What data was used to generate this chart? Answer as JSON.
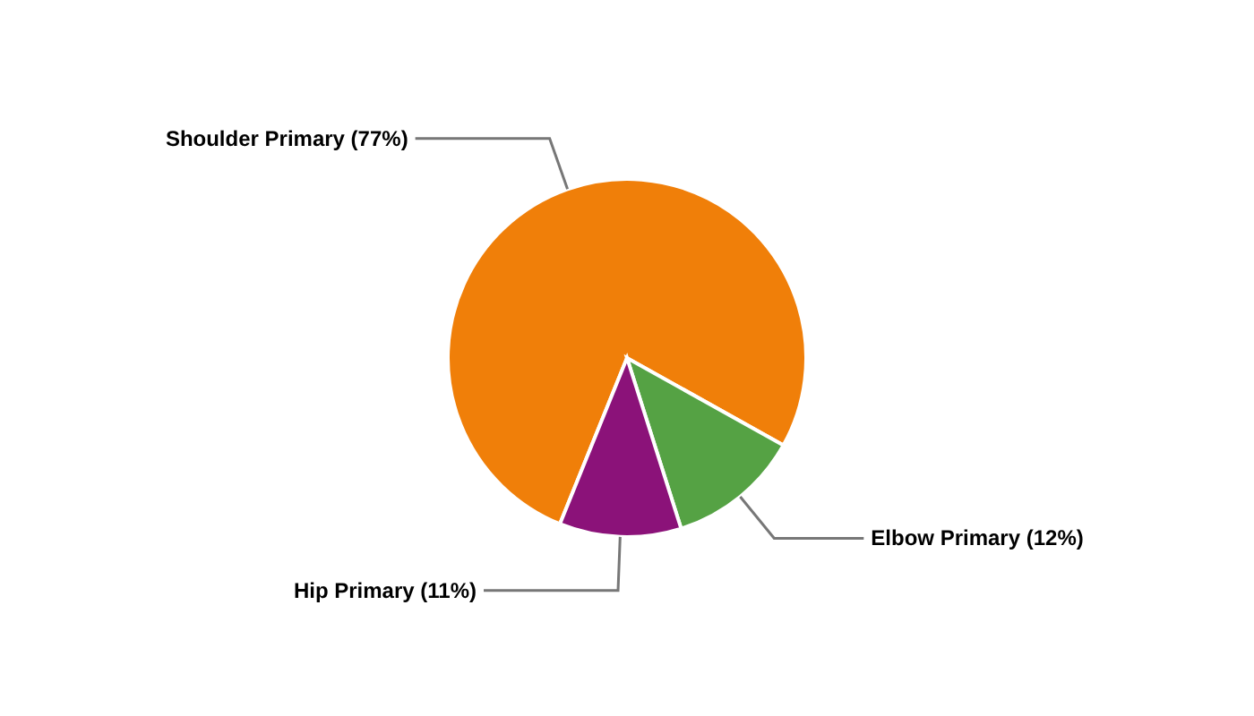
{
  "chart_data": {
    "type": "pie",
    "categories": [
      "Shoulder Primary",
      "Elbow Primary",
      "Hip Primary"
    ],
    "values": [
      77,
      12,
      11
    ],
    "value_labels": [
      "(77%)",
      "(12%)",
      "(11%)"
    ],
    "colors": [
      "#f07f09",
      "#55a244",
      "#8b1279"
    ]
  }
}
